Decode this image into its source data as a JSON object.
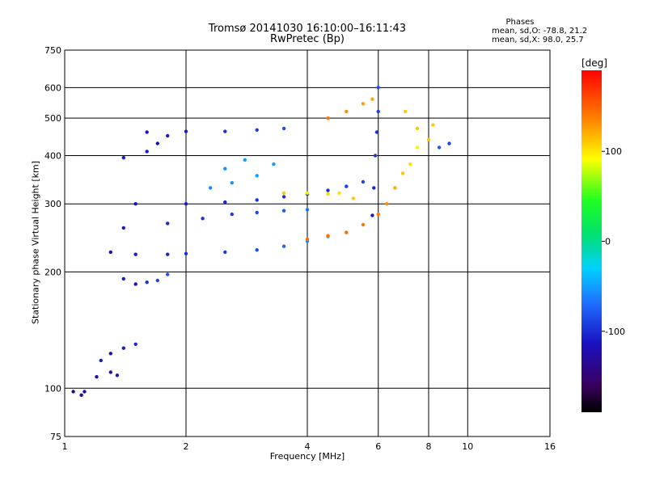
{
  "title": {
    "line1": "Tromsø 20141030 16:10:00–16:11:43",
    "line2": "RwPretec (Bp)"
  },
  "phase_info": {
    "heading": "Phases",
    "o_mode": "mean, sd,O:  -78.8, 21.2",
    "x_mode": "mean, sd,X:  98.0, 25.7"
  },
  "chart_data": {
    "type": "scatter",
    "xlabel": "Frequency [MHz]",
    "ylabel": "Stationary phase Virtual Height [km]",
    "xscale": "log",
    "yscale": "log",
    "xlim": [
      1,
      16
    ],
    "ylim": [
      75,
      750
    ],
    "x_ticks": [
      1,
      2,
      4,
      6,
      8,
      10,
      16
    ],
    "x_tick_labels": [
      "1",
      "2",
      "4",
      "6",
      "8",
      "10",
      "16"
    ],
    "y_ticks": [
      75,
      100,
      200,
      300,
      400,
      500,
      600,
      750
    ],
    "y_tick_labels": [
      "75",
      "100",
      "200",
      "300",
      "400",
      "500",
      "600",
      "750"
    ],
    "grid": true,
    "colorbar": {
      "label": "[deg]",
      "range": [
        -190,
        190
      ],
      "ticks": [
        100,
        0,
        -100
      ],
      "tick_labels": [
        "100",
        "0",
        "-100"
      ],
      "colormap": "rainbow"
    },
    "series": [
      {
        "mode": "O",
        "points": [
          [
            1.05,
            98,
            -140
          ],
          [
            1.1,
            96,
            -130
          ],
          [
            1.12,
            98,
            -120
          ],
          [
            1.2,
            107,
            -120
          ],
          [
            1.23,
            118,
            -110
          ],
          [
            1.3,
            123,
            -115
          ],
          [
            1.4,
            127,
            -110
          ],
          [
            1.5,
            130,
            -105
          ],
          [
            1.3,
            110,
            -120
          ],
          [
            1.35,
            108,
            -115
          ],
          [
            1.4,
            192,
            -110
          ],
          [
            1.5,
            186,
            -115
          ],
          [
            1.6,
            188,
            -100
          ],
          [
            1.7,
            190,
            -90
          ],
          [
            1.8,
            197,
            -85
          ],
          [
            1.3,
            225,
            -120
          ],
          [
            1.5,
            222,
            -110
          ],
          [
            1.8,
            222,
            -105
          ],
          [
            2.0,
            223,
            -100
          ],
          [
            2.5,
            225,
            -95
          ],
          [
            3.0,
            228,
            -85
          ],
          [
            3.5,
            233,
            -75
          ],
          [
            4.0,
            240,
            -60
          ],
          [
            4.5,
            247,
            -45
          ],
          [
            1.4,
            260,
            -110
          ],
          [
            1.8,
            267,
            -105
          ],
          [
            2.2,
            275,
            -100
          ],
          [
            2.6,
            282,
            -95
          ],
          [
            3.0,
            285,
            -90
          ],
          [
            3.5,
            288,
            -80
          ],
          [
            4.0,
            290,
            -70
          ],
          [
            1.5,
            300,
            -115
          ],
          [
            2.0,
            300,
            -110
          ],
          [
            2.5,
            303,
            -105
          ],
          [
            3.0,
            307,
            -100
          ],
          [
            3.5,
            313,
            -100
          ],
          [
            4.0,
            318,
            -100
          ],
          [
            4.5,
            325,
            -100
          ],
          [
            5.0,
            333,
            -95
          ],
          [
            5.5,
            342,
            -90
          ],
          [
            1.4,
            395,
            -110
          ],
          [
            1.6,
            410,
            -110
          ],
          [
            1.7,
            430,
            -115
          ],
          [
            1.8,
            450,
            -110
          ],
          [
            1.6,
            460,
            -115
          ],
          [
            2.0,
            462,
            -110
          ],
          [
            2.5,
            462,
            -100
          ],
          [
            3.0,
            466,
            -95
          ],
          [
            3.5,
            470,
            -90
          ],
          [
            2.3,
            330,
            -60
          ],
          [
            2.6,
            340,
            -55
          ],
          [
            3.0,
            355,
            -50
          ],
          [
            3.3,
            380,
            -50
          ],
          [
            2.5,
            370,
            -55
          ],
          [
            2.8,
            390,
            -50
          ],
          [
            5.8,
            280,
            -110
          ],
          [
            5.85,
            330,
            -105
          ],
          [
            5.9,
            400,
            -100
          ],
          [
            5.95,
            460,
            -100
          ],
          [
            6.0,
            520,
            -95
          ],
          [
            6.0,
            600,
            -85
          ]
        ]
      },
      {
        "mode": "X",
        "points": [
          [
            3.5,
            320,
            110
          ],
          [
            4.0,
            320,
            100
          ],
          [
            4.5,
            318,
            105
          ],
          [
            4.8,
            320,
            100
          ],
          [
            5.2,
            310,
            110
          ],
          [
            4.0,
            243,
            140
          ],
          [
            4.5,
            248,
            140
          ],
          [
            5.0,
            253,
            145
          ],
          [
            5.5,
            265,
            140
          ],
          [
            6.0,
            282,
            135
          ],
          [
            6.3,
            300,
            130
          ],
          [
            6.6,
            330,
            120
          ],
          [
            6.9,
            360,
            110
          ],
          [
            7.2,
            380,
            100
          ],
          [
            7.5,
            420,
            95
          ],
          [
            4.5,
            500,
            140
          ],
          [
            5.0,
            520,
            130
          ],
          [
            5.5,
            545,
            125
          ],
          [
            5.8,
            560,
            120
          ],
          [
            7.0,
            520,
            110
          ],
          [
            7.5,
            470,
            110
          ],
          [
            8.0,
            440,
            110
          ],
          [
            8.2,
            480,
            110
          ],
          [
            8.5,
            420,
            -80
          ],
          [
            9.0,
            430,
            -90
          ]
        ]
      }
    ]
  }
}
